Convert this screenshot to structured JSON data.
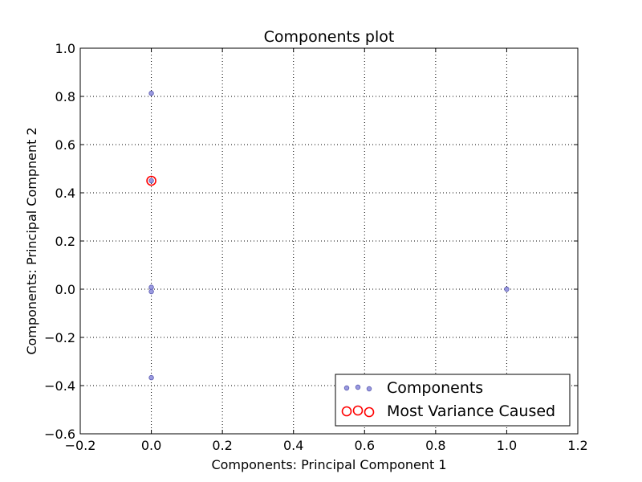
{
  "chart_data": {
    "type": "scatter",
    "title": "Components plot",
    "xlabel": "Components: Principal Component 1",
    "ylabel": "Components: Principal Compnent 2",
    "xlim": [
      -0.2,
      1.2
    ],
    "ylim": [
      -0.6,
      1.0
    ],
    "x_ticks": [
      -0.2,
      0.0,
      0.2,
      0.4,
      0.6,
      0.8,
      1.0,
      1.2
    ],
    "x_tick_labels": [
      "−0.2",
      "0.0",
      "0.2",
      "0.4",
      "0.6",
      "0.8",
      "1.0",
      "1.2"
    ],
    "y_ticks": [
      -0.6,
      -0.4,
      -0.2,
      0.0,
      0.2,
      0.4,
      0.6,
      0.8,
      1.0
    ],
    "y_tick_labels": [
      "−0.6",
      "−0.4",
      "−0.2",
      "0.0",
      "0.2",
      "0.4",
      "0.6",
      "0.8",
      "1.0"
    ],
    "grid": true,
    "legend_position": "bottom-right",
    "series": [
      {
        "name": "Components",
        "marker": "filled-circle",
        "color": "#9a9ae0",
        "edge_color": "#5a5ab0",
        "points": [
          {
            "x": 0.0,
            "y": 0.813
          },
          {
            "x": 0.0,
            "y": 0.45
          },
          {
            "x": 0.0,
            "y": 0.008
          },
          {
            "x": 0.0,
            "y": -0.01
          },
          {
            "x": 0.0,
            "y": -0.367
          },
          {
            "x": 1.0,
            "y": 0.0
          }
        ]
      },
      {
        "name": "Most Variance Caused",
        "marker": "open-circle",
        "color": "#ff0000",
        "points": [
          {
            "x": 0.0,
            "y": 0.45
          }
        ]
      }
    ]
  }
}
